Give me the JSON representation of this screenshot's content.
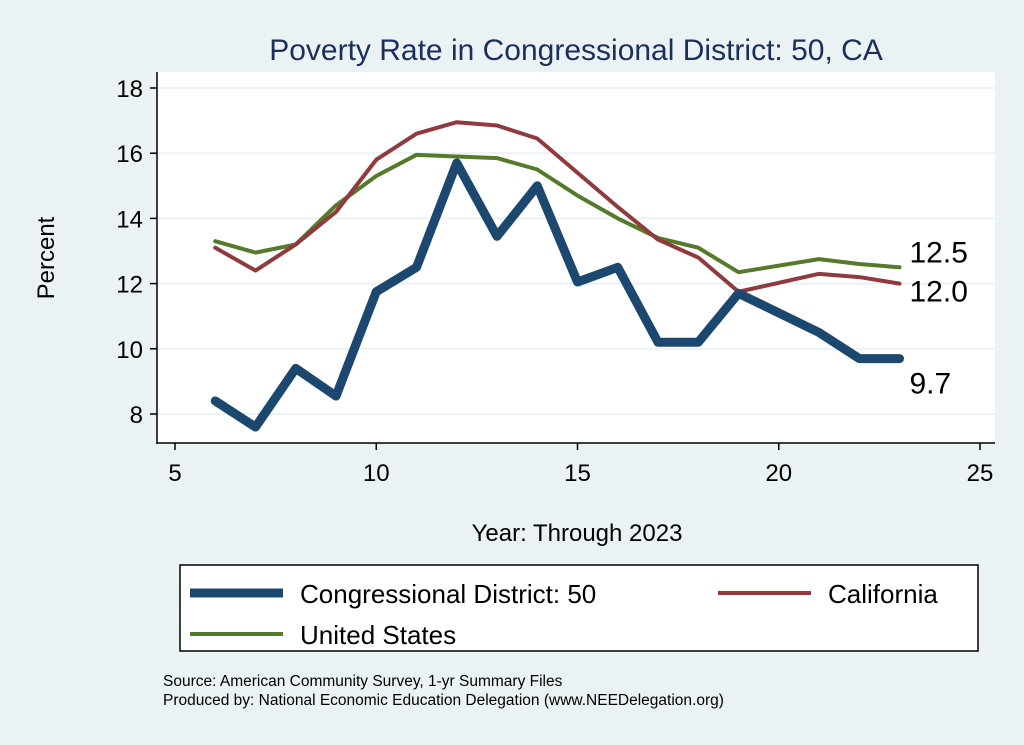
{
  "chart_data": {
    "type": "line",
    "title": "Poverty Rate in Congressional District:  50, CA",
    "xlabel": "Year: Through 2023",
    "ylabel": "Percent",
    "xlim": [
      5,
      25
    ],
    "ylim": [
      7.2,
      18.5
    ],
    "xticks": [
      5,
      10,
      15,
      20,
      25
    ],
    "yticks": [
      8,
      10,
      12,
      14,
      16,
      18
    ],
    "grid": true,
    "legend_position": "bottom",
    "x": [
      6,
      7,
      8,
      9,
      10,
      11,
      12,
      13,
      14,
      15,
      16,
      17,
      18,
      19,
      21,
      22,
      23
    ],
    "series": [
      {
        "name": "Congressional District:  50",
        "color": "#1c4870",
        "width": 9,
        "values": [
          8.4,
          7.6,
          9.4,
          8.55,
          11.75,
          12.5,
          15.7,
          13.45,
          15.0,
          12.05,
          12.5,
          10.2,
          10.2,
          11.7,
          10.5,
          9.7,
          9.7
        ],
        "end_label": "9.7"
      },
      {
        "name": "California",
        "color": "#903a40",
        "width": 4,
        "values": [
          13.1,
          12.4,
          13.2,
          14.2,
          15.8,
          16.6,
          16.95,
          16.85,
          16.45,
          15.4,
          14.35,
          13.35,
          12.8,
          11.75,
          12.3,
          12.2,
          12.0
        ],
        "end_label": "12.0"
      },
      {
        "name": "United States",
        "color": "#557a2c",
        "width": 4,
        "values": [
          13.3,
          12.95,
          13.2,
          14.4,
          15.3,
          15.95,
          15.9,
          15.85,
          15.5,
          14.7,
          14.0,
          13.4,
          13.1,
          12.35,
          12.75,
          12.6,
          12.5
        ],
        "end_label": "12.5"
      }
    ]
  },
  "footer": {
    "source": "Source: American Community Survey, 1-yr Summary Files",
    "produced_by": "Produced by: National Economic Education Delegation (www.NEEDelegation.org)"
  }
}
